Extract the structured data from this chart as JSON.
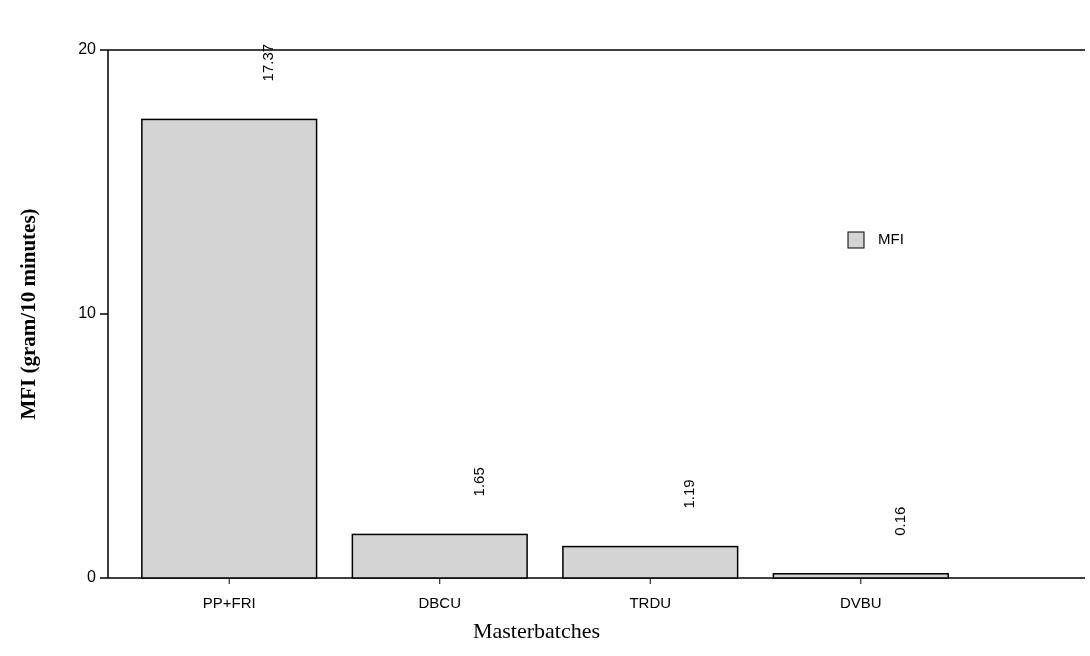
{
  "chart_data": {
    "type": "bar",
    "xlabel": "Masterbatches",
    "ylabel": "MFI (gram/10 minutes)",
    "categories": [
      "PP+FRI",
      "DBCU",
      "TRDU",
      "DVBU"
    ],
    "series": [
      {
        "name": "MFI",
        "color": "#d4d4d4",
        "values": [
          17.37,
          1.65,
          1.19,
          0.16
        ]
      }
    ],
    "ylim": [
      0,
      20
    ],
    "yticks": [
      0,
      10,
      20
    ],
    "data_labels": true,
    "legend": "top right",
    "grid": false
  }
}
